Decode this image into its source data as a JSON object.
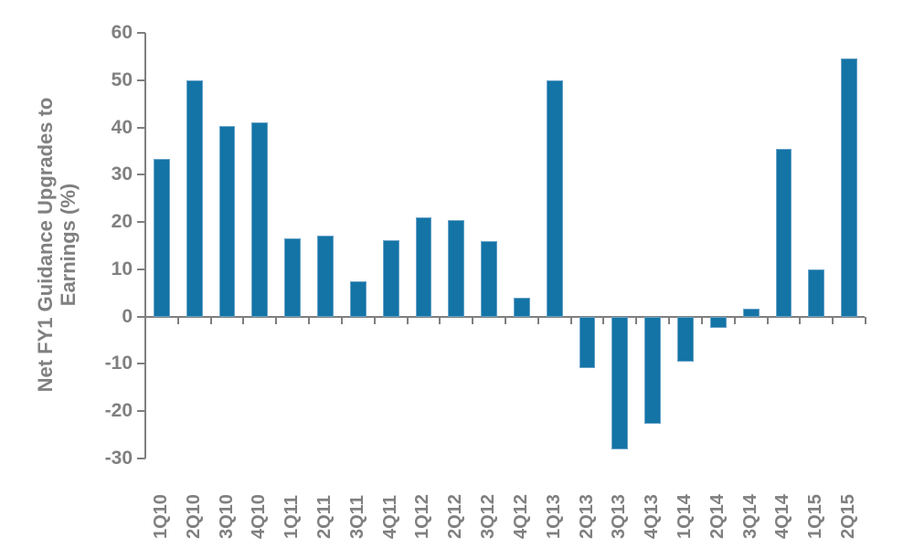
{
  "chart_data": {
    "type": "bar",
    "title": "",
    "xlabel": "",
    "ylabel": "Net FY1 Guidance Upgrades to Earnings (%)",
    "ylabel_lines": [
      "Net FY1 Guidance Upgrades to",
      "Earnings (%)"
    ],
    "ylim": [
      -30,
      60
    ],
    "yticks": [
      60,
      50,
      40,
      30,
      20,
      10,
      0,
      -10,
      -20,
      -30
    ],
    "grid": false,
    "legend": null,
    "bar_color": "#1474a6",
    "axis_color": "#7f7f7f",
    "text_color": "#808080",
    "categories": [
      "1Q10",
      "2Q10",
      "3Q10",
      "4Q10",
      "1Q11",
      "2Q11",
      "3Q11",
      "4Q11",
      "1Q12",
      "2Q12",
      "3Q12",
      "4Q12",
      "1Q13",
      "2Q13",
      "3Q13",
      "4Q13",
      "1Q14",
      "2Q14",
      "3Q14",
      "4Q14",
      "1Q15",
      "2Q15"
    ],
    "values": [
      33.4,
      50.0,
      40.3,
      41.1,
      16.6,
      17.2,
      7.5,
      16.2,
      21.0,
      20.4,
      16.0,
      4.0,
      50.0,
      -10.8,
      -28.0,
      -22.6,
      -9.6,
      -2.4,
      1.7,
      35.5,
      10.0,
      54.6
    ]
  }
}
